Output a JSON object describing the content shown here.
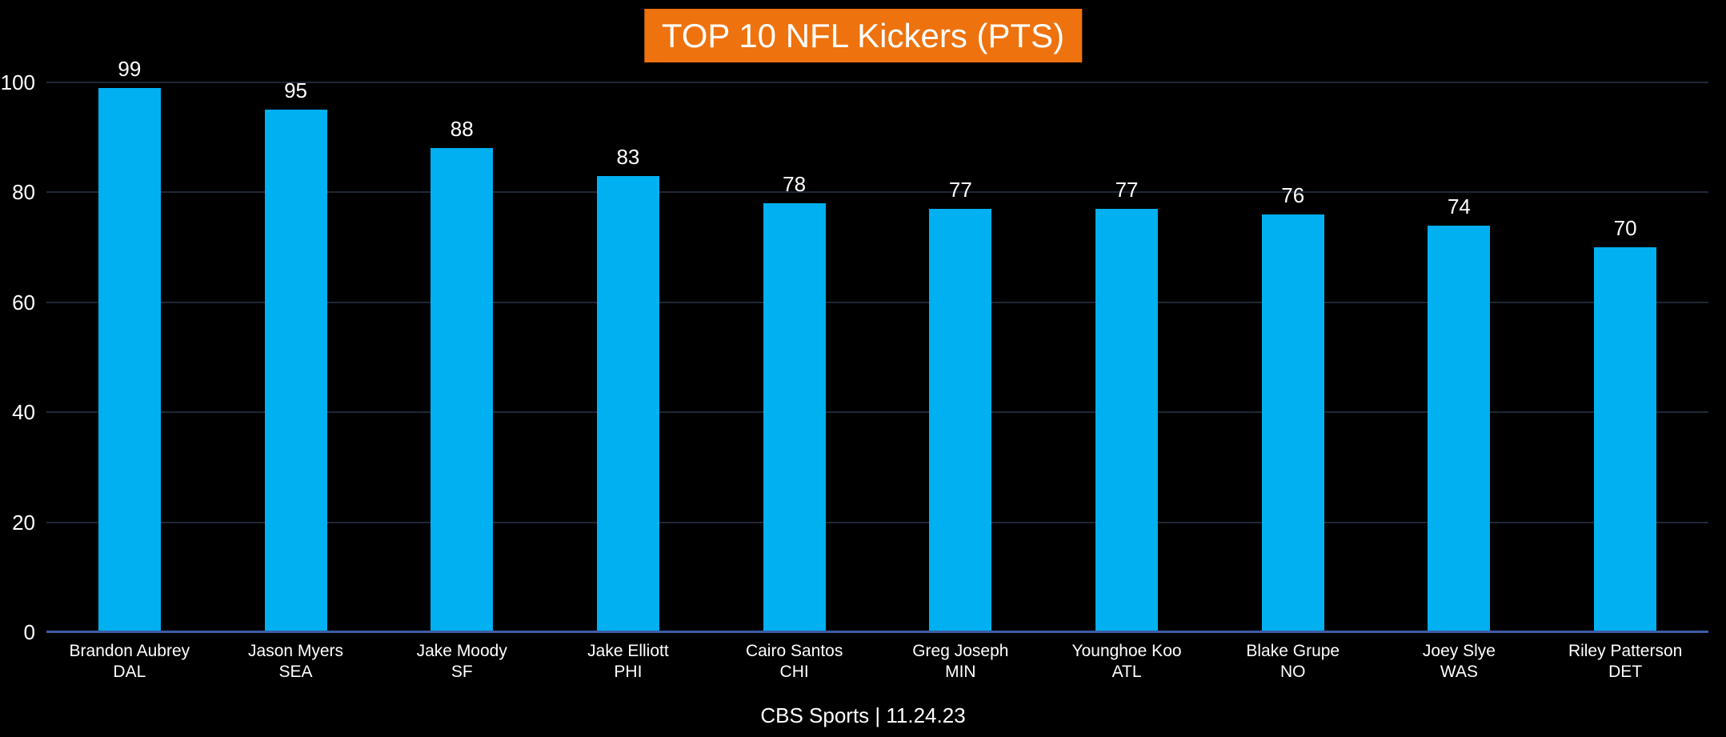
{
  "colors": {
    "background": "#000000",
    "bar": "#00B0F0",
    "title_background": "#EE720D",
    "title_text": "#FFFFFF",
    "gridline": "#202836",
    "axis_line": "#3D5CA6",
    "text": "#FFFFFF"
  },
  "chart_data": {
    "type": "bar",
    "title": "TOP 10 NFL Kickers (PTS)",
    "source": "CBS Sports | 11.24.23",
    "categories": [
      "Brandon Aubrey",
      "Jason Myers",
      "Jake Moody",
      "Jake Elliott",
      "Cairo Santos",
      "Greg Joseph",
      "Younghoe Koo",
      "Blake Grupe",
      "Joey Slye",
      "Riley Patterson"
    ],
    "teams": [
      "DAL",
      "SEA",
      "SF",
      "PHI",
      "CHI",
      "MIN",
      "ATL",
      "NO",
      "WAS",
      "DET"
    ],
    "values": [
      99,
      95,
      88,
      83,
      78,
      77,
      77,
      76,
      74,
      70
    ],
    "xlabel": "",
    "ylabel": "",
    "ylim": [
      0,
      100
    ],
    "yticks": [
      0,
      20,
      40,
      60,
      80,
      100
    ],
    "grid": true,
    "legend": false,
    "value_labels": true,
    "value_label_position": "above-bar"
  }
}
